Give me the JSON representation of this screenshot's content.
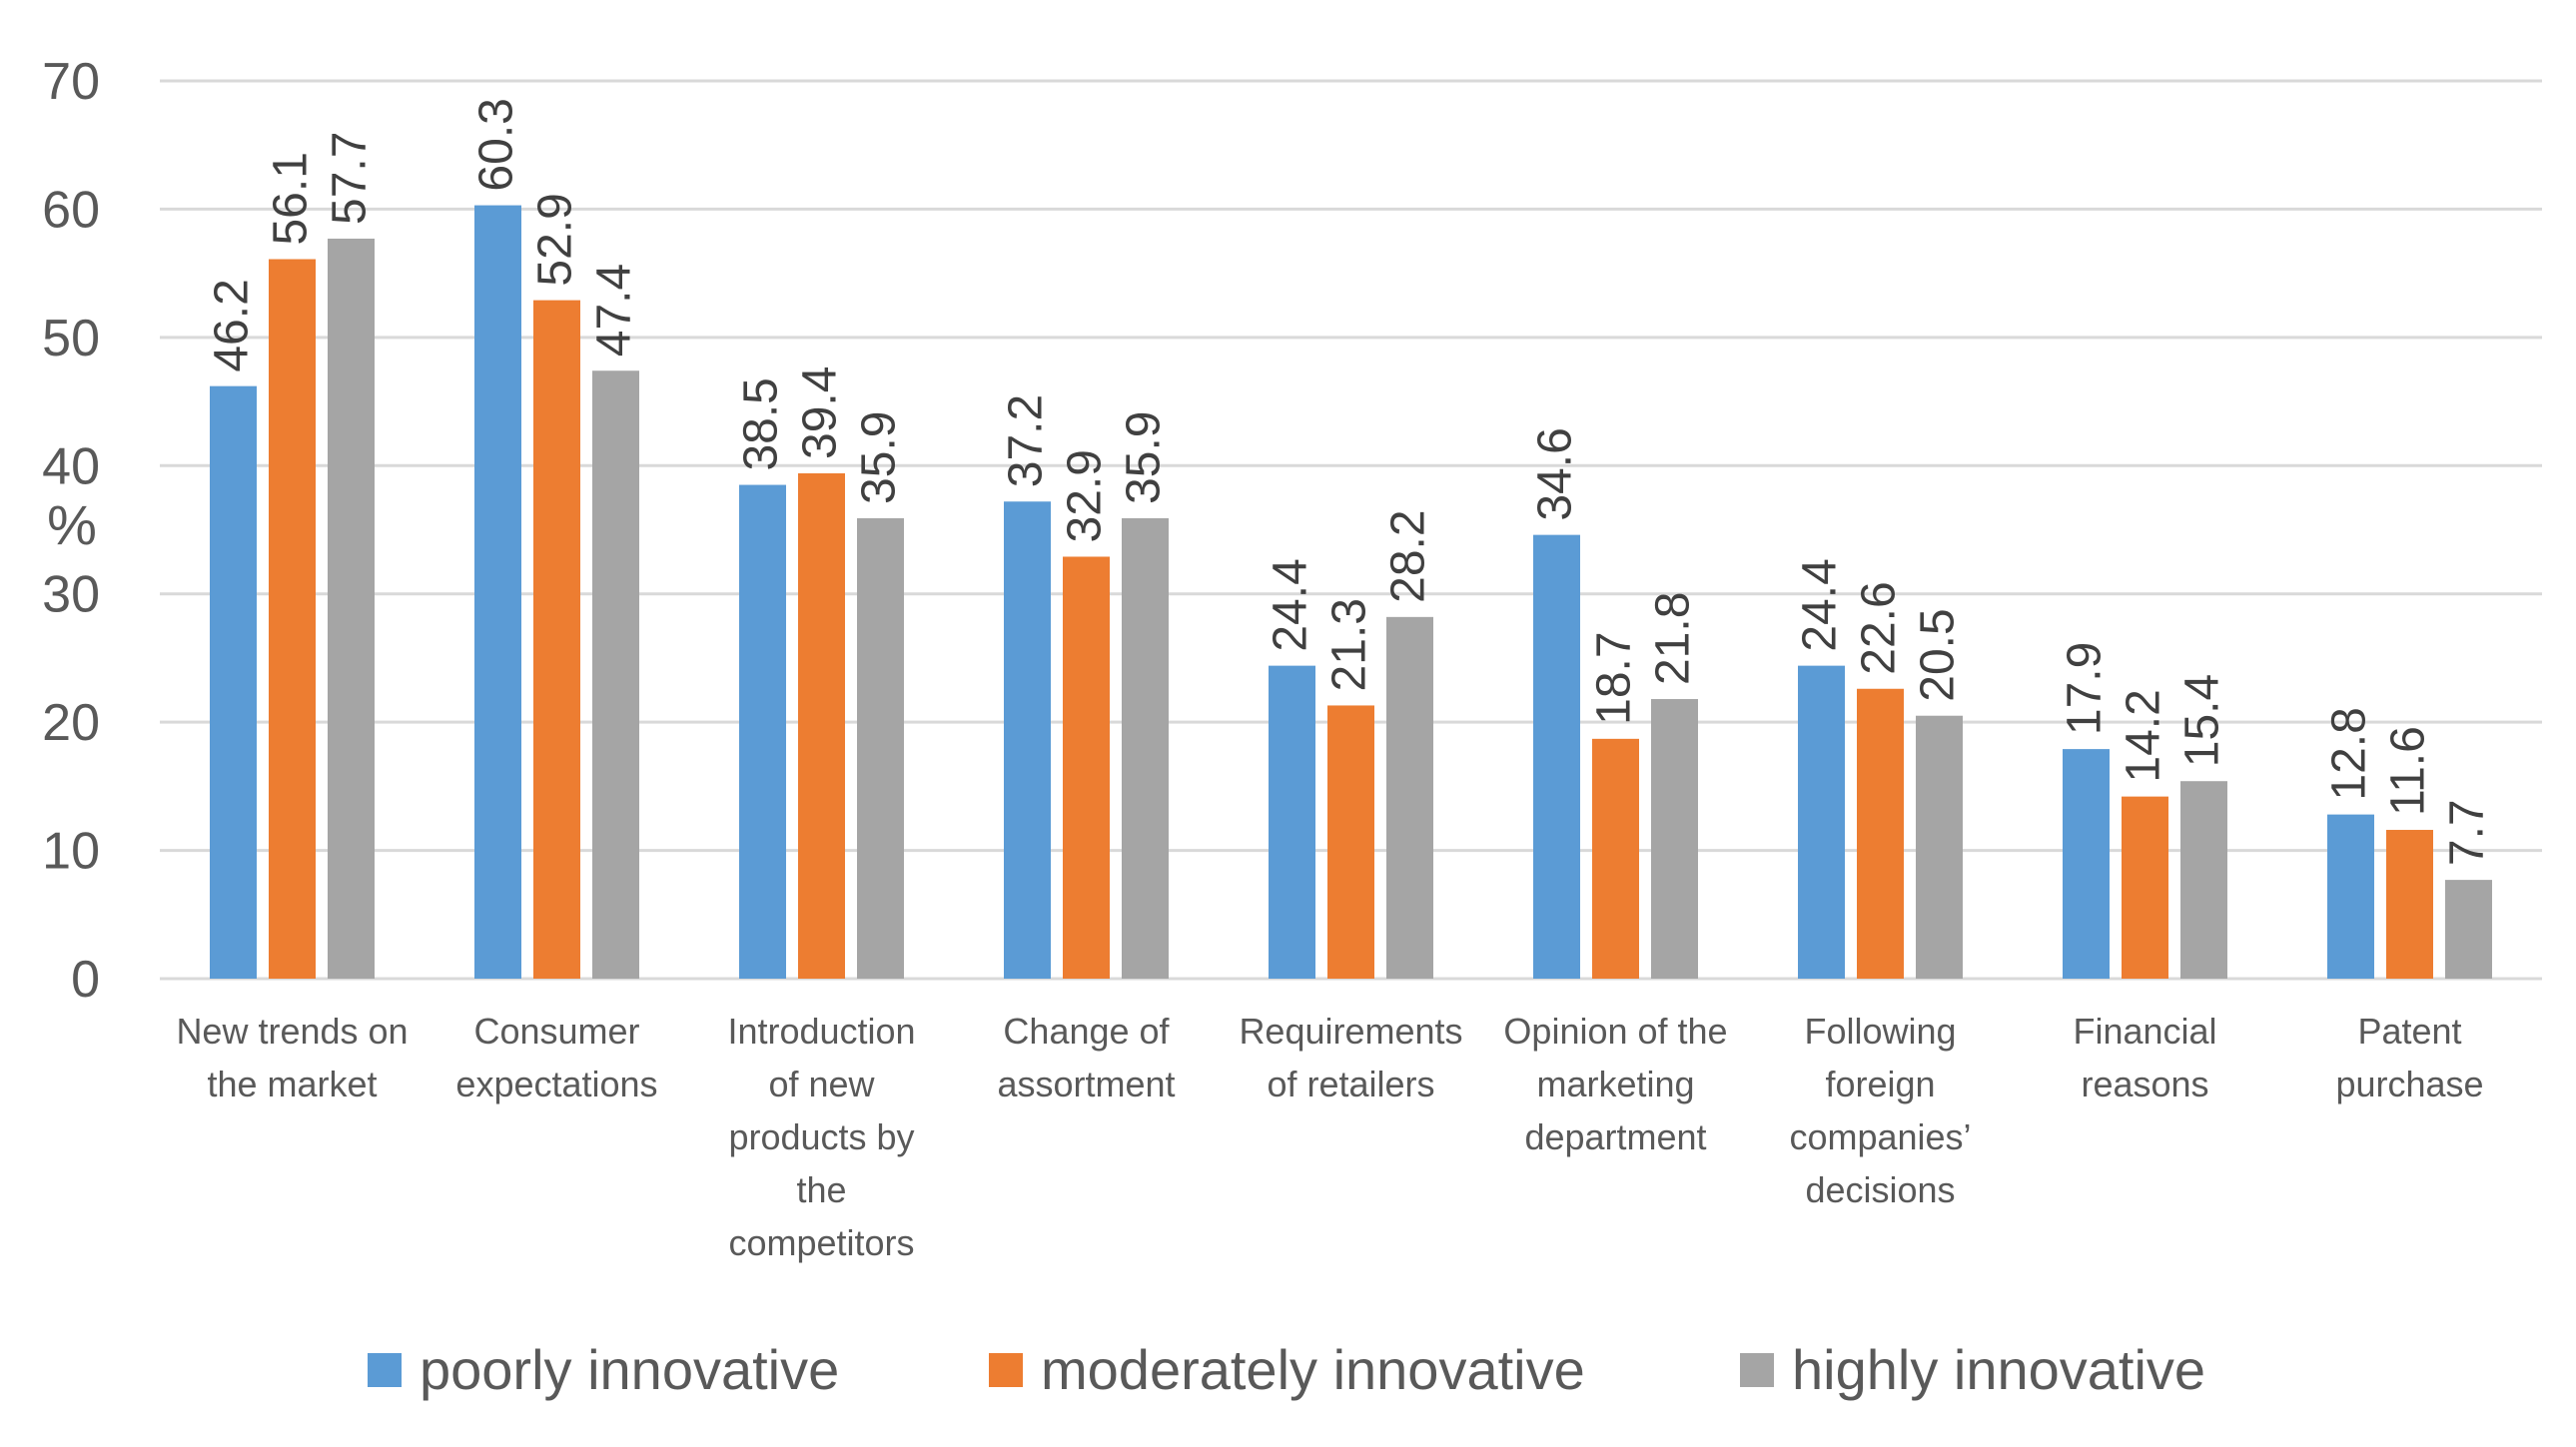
{
  "chart_data": {
    "type": "bar",
    "title": "",
    "xlabel": "",
    "ylabel": "%",
    "ylim": [
      0,
      70
    ],
    "yticks": [
      0,
      10,
      20,
      30,
      40,
      50,
      60,
      70
    ],
    "grid": true,
    "legend_position": "bottom",
    "categories": [
      [
        "New trends on",
        "the market"
      ],
      [
        "Consumer",
        "expectations"
      ],
      [
        "Introduction",
        "of new",
        "products by",
        "the",
        "competitors"
      ],
      [
        "Change of",
        "assortment"
      ],
      [
        "Requirements",
        "of retailers"
      ],
      [
        "Opinion of the",
        "marketing",
        "department"
      ],
      [
        "Following",
        "foreign",
        "companies’",
        "decisions"
      ],
      [
        "Financial",
        "reasons"
      ],
      [
        "Patent",
        "purchase"
      ]
    ],
    "series": [
      {
        "name": "poorly innovative",
        "color": "#5B9BD5",
        "values": [
          46.2,
          60.3,
          38.5,
          37.2,
          24.4,
          34.6,
          24.4,
          17.9,
          12.8
        ]
      },
      {
        "name": "moderately innovative",
        "color": "#ED7D31",
        "values": [
          56.1,
          52.9,
          39.4,
          32.9,
          21.3,
          18.7,
          22.6,
          14.2,
          11.6
        ]
      },
      {
        "name": "highly innovative",
        "color": "#A5A5A5",
        "values": [
          57.7,
          47.4,
          35.9,
          35.9,
          28.2,
          21.8,
          20.5,
          15.4,
          7.7
        ]
      }
    ]
  }
}
